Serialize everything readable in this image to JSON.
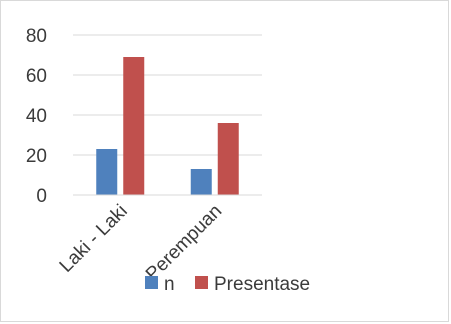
{
  "chart_data": {
    "type": "bar",
    "categories": [
      "Laki - Laki",
      "Perempuan"
    ],
    "series": [
      {
        "name": "n",
        "values": [
          23,
          13
        ],
        "color": "#4f81bd"
      },
      {
        "name": "Presentase",
        "values": [
          69,
          36
        ],
        "color": "#c0504d"
      }
    ],
    "y_ticks": [
      "0",
      "20",
      "40",
      "60",
      "80"
    ],
    "ylim": [
      0,
      80
    ],
    "grid": true,
    "legend_position": "bottom"
  }
}
